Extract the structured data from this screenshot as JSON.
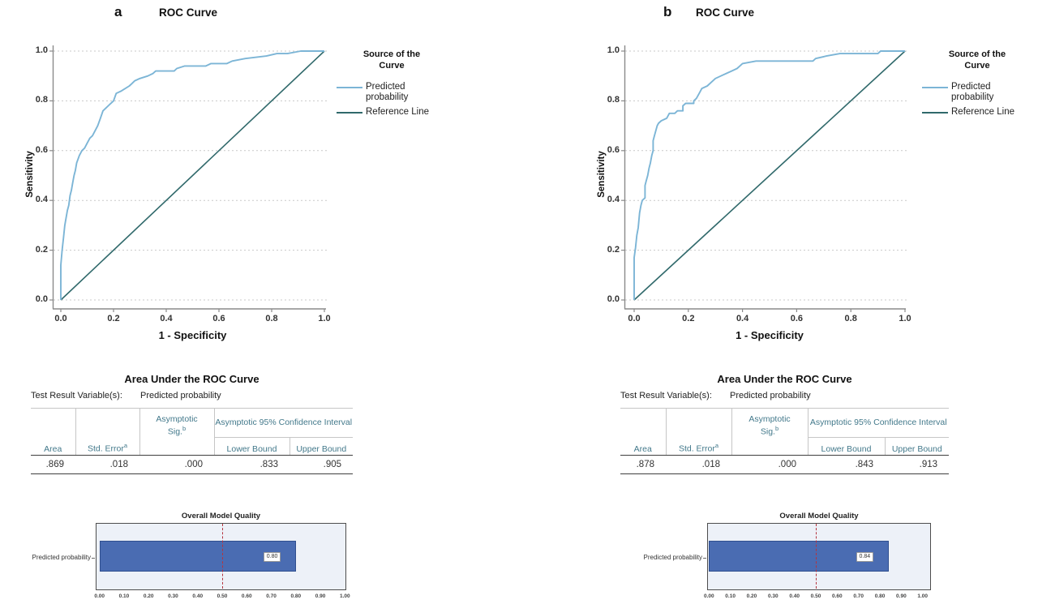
{
  "panels": [
    {
      "label": "a",
      "title": "ROC Curve",
      "table": {
        "title": "Area Under the ROC Curve",
        "test_result_label": "Test Result Variable(s):",
        "test_result_value": "Predicted probability",
        "headers": {
          "area": "Area",
          "std_error": "Std. Error",
          "std_error_sup": "a",
          "asymptotic_sig": "Asymptotic Sig.",
          "asymptotic_sig_sup": "b",
          "ci": "Asymptotic 95% Confidence Interval",
          "lower": "Lower Bound",
          "upper": "Upper Bound"
        },
        "values": {
          "area": ".869",
          "std_error": ".018",
          "asymptotic_sig": ".000",
          "lower": ".833",
          "upper": ".905"
        }
      }
    },
    {
      "label": "b",
      "title": "ROC Curve",
      "table": {
        "title": "Area Under the ROC Curve",
        "test_result_label": "Test Result Variable(s):",
        "test_result_value": "Predicted probability",
        "headers": {
          "area": "Area",
          "std_error": "Std. Error",
          "std_error_sup": "a",
          "asymptotic_sig": "Asymptotic Sig.",
          "asymptotic_sig_sup": "b",
          "ci": "Asymptotic 95% Confidence Interval",
          "lower": "Lower Bound",
          "upper": "Upper Bound"
        },
        "values": {
          "area": ".878",
          "std_error": ".018",
          "asymptotic_sig": ".000",
          "lower": ".843",
          "upper": ".913"
        }
      }
    }
  ],
  "chart_data": [
    {
      "id": "roc_a",
      "type": "line",
      "panel": "a",
      "title": "ROC Curve",
      "xlabel": "1 - Specificity",
      "ylabel": "Sensitivity",
      "xlim": [
        0,
        1
      ],
      "ylim": [
        0,
        1
      ],
      "xticks": [
        "0.0",
        "0.2",
        "0.4",
        "0.6",
        "0.8",
        "1.0"
      ],
      "yticks": [
        "0.0",
        "0.2",
        "0.4",
        "0.6",
        "0.8",
        "1.0"
      ],
      "grid": "horizontal dashed",
      "legend_title": "Source of the Curve",
      "legend_position": "right",
      "series": [
        {
          "name": "Predicted probability",
          "color": "#7cb5d6",
          "points": [
            [
              0,
              0
            ],
            [
              0,
              0.14
            ],
            [
              0.005,
              0.2
            ],
            [
              0.01,
              0.25
            ],
            [
              0.015,
              0.3
            ],
            [
              0.02,
              0.33
            ],
            [
              0.025,
              0.36
            ],
            [
              0.03,
              0.38
            ],
            [
              0.035,
              0.42
            ],
            [
              0.04,
              0.44
            ],
            [
              0.045,
              0.47
            ],
            [
              0.05,
              0.5
            ],
            [
              0.055,
              0.52
            ],
            [
              0.06,
              0.55
            ],
            [
              0.07,
              0.58
            ],
            [
              0.08,
              0.6
            ],
            [
              0.09,
              0.61
            ],
            [
              0.1,
              0.63
            ],
            [
              0.11,
              0.65
            ],
            [
              0.12,
              0.66
            ],
            [
              0.13,
              0.68
            ],
            [
              0.14,
              0.7
            ],
            [
              0.15,
              0.73
            ],
            [
              0.16,
              0.76
            ],
            [
              0.17,
              0.77
            ],
            [
              0.18,
              0.78
            ],
            [
              0.2,
              0.8
            ],
            [
              0.21,
              0.83
            ],
            [
              0.23,
              0.84
            ],
            [
              0.26,
              0.86
            ],
            [
              0.27,
              0.87
            ],
            [
              0.28,
              0.88
            ],
            [
              0.3,
              0.89
            ],
            [
              0.33,
              0.9
            ],
            [
              0.35,
              0.91
            ],
            [
              0.36,
              0.92
            ],
            [
              0.43,
              0.92
            ],
            [
              0.44,
              0.93
            ],
            [
              0.47,
              0.94
            ],
            [
              0.55,
              0.94
            ],
            [
              0.57,
              0.95
            ],
            [
              0.63,
              0.95
            ],
            [
              0.65,
              0.96
            ],
            [
              0.7,
              0.97
            ],
            [
              0.78,
              0.98
            ],
            [
              0.82,
              0.99
            ],
            [
              0.86,
              0.99
            ],
            [
              0.91,
              1
            ],
            [
              1,
              1
            ]
          ]
        },
        {
          "name": "Reference Line",
          "color": "#30696b",
          "points": [
            [
              0,
              0
            ],
            [
              1,
              1
            ]
          ]
        }
      ]
    },
    {
      "id": "omq_a",
      "type": "bar",
      "panel": "a",
      "orientation": "horizontal",
      "title": "Overall Model Quality",
      "categories": [
        "Predicted probability"
      ],
      "values": [
        0.8
      ],
      "bar_label": "0.80",
      "reference_line": 0.5,
      "xlim": [
        0,
        1
      ],
      "xticks": [
        "0.00",
        "0.10",
        "0.20",
        "0.30",
        "0.40",
        "0.50",
        "0.60",
        "0.70",
        "0.80",
        "0.90",
        "1.00"
      ]
    },
    {
      "id": "roc_b",
      "type": "line",
      "panel": "b",
      "title": "ROC Curve",
      "xlabel": "1 - Specificity",
      "ylabel": "Sensitivity",
      "xlim": [
        0,
        1
      ],
      "ylim": [
        0,
        1
      ],
      "xticks": [
        "0.0",
        "0.2",
        "0.4",
        "0.6",
        "0.8",
        "1.0"
      ],
      "yticks": [
        "0.0",
        "0.2",
        "0.4",
        "0.6",
        "0.8",
        "1.0"
      ],
      "grid": "horizontal dashed",
      "legend_title": "Source of the Curve",
      "legend_position": "right",
      "series": [
        {
          "name": "Predicted probability",
          "color": "#7cb5d6",
          "points": [
            [
              0,
              0
            ],
            [
              0,
              0.17
            ],
            [
              0.005,
              0.21
            ],
            [
              0.01,
              0.26
            ],
            [
              0.015,
              0.29
            ],
            [
              0.02,
              0.35
            ],
            [
              0.025,
              0.38
            ],
            [
              0.03,
              0.4
            ],
            [
              0.04,
              0.41
            ],
            [
              0.04,
              0.46
            ],
            [
              0.045,
              0.48
            ],
            [
              0.05,
              0.5
            ],
            [
              0.055,
              0.53
            ],
            [
              0.06,
              0.55
            ],
            [
              0.065,
              0.58
            ],
            [
              0.07,
              0.6
            ],
            [
              0.07,
              0.64
            ],
            [
              0.075,
              0.66
            ],
            [
              0.08,
              0.68
            ],
            [
              0.085,
              0.7
            ],
            [
              0.09,
              0.71
            ],
            [
              0.1,
              0.72
            ],
            [
              0.12,
              0.73
            ],
            [
              0.13,
              0.75
            ],
            [
              0.15,
              0.75
            ],
            [
              0.16,
              0.76
            ],
            [
              0.18,
              0.76
            ],
            [
              0.18,
              0.78
            ],
            [
              0.19,
              0.79
            ],
            [
              0.22,
              0.79
            ],
            [
              0.22,
              0.8
            ],
            [
              0.23,
              0.81
            ],
            [
              0.24,
              0.83
            ],
            [
              0.25,
              0.85
            ],
            [
              0.27,
              0.86
            ],
            [
              0.29,
              0.88
            ],
            [
              0.3,
              0.89
            ],
            [
              0.32,
              0.9
            ],
            [
              0.34,
              0.91
            ],
            [
              0.36,
              0.92
            ],
            [
              0.38,
              0.93
            ],
            [
              0.39,
              0.94
            ],
            [
              0.4,
              0.95
            ],
            [
              0.45,
              0.96
            ],
            [
              0.66,
              0.96
            ],
            [
              0.67,
              0.97
            ],
            [
              0.71,
              0.98
            ],
            [
              0.76,
              0.99
            ],
            [
              0.82,
              0.99
            ],
            [
              0.9,
              0.99
            ],
            [
              0.91,
              1
            ],
            [
              1,
              1
            ]
          ]
        },
        {
          "name": "Reference Line",
          "color": "#30696b",
          "points": [
            [
              0,
              0
            ],
            [
              1,
              1
            ]
          ]
        }
      ]
    },
    {
      "id": "omq_b",
      "type": "bar",
      "panel": "b",
      "orientation": "horizontal",
      "title": "Overall Model Quality",
      "categories": [
        "Predicted probability"
      ],
      "values": [
        0.84
      ],
      "bar_label": "0.84",
      "reference_line": 0.5,
      "xlim": [
        0,
        1
      ],
      "xticks": [
        "0.00",
        "0.10",
        "0.20",
        "0.30",
        "0.40",
        "0.50",
        "0.60",
        "0.70",
        "0.80",
        "0.90",
        "1.00"
      ]
    }
  ],
  "colors": {
    "curve": "#7cb5d6",
    "reference_line": "#30696b",
    "grid": "#c9c9c9",
    "axis": "#8a8a8a",
    "table_header_text": "#43798b",
    "bar": "#4a6cb2",
    "bar_border": "#2f4f8f",
    "bar_reference": "#b5343e",
    "bar_frame_bg": "#edf1f8"
  }
}
